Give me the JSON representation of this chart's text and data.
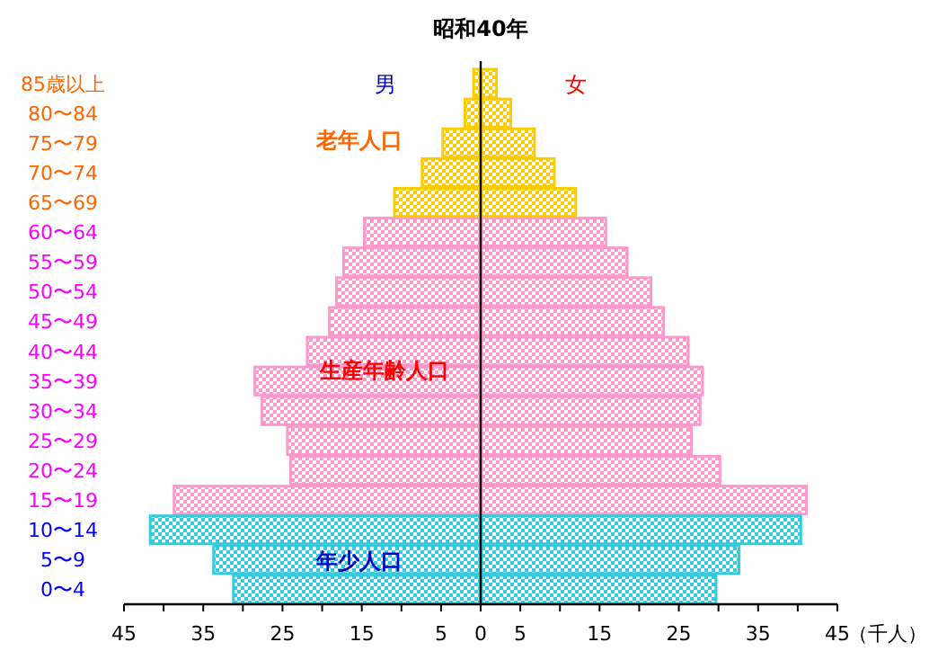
{
  "chart_data": {
    "type": "bar",
    "orientation": "horizontal",
    "title": "昭和40年",
    "xlabel": "（千人）",
    "categories": [
      "85歳以上",
      "80〜84",
      "75〜79",
      "70〜74",
      "65〜69",
      "60〜64",
      "55〜59",
      "50〜54",
      "45〜49",
      "40〜44",
      "35〜39",
      "30〜34",
      "25〜29",
      "20〜24",
      "15〜19",
      "10〜14",
      "5〜9",
      "0〜4"
    ],
    "series": [
      {
        "name": "男",
        "values": [
          -1.0,
          -2.1,
          -4.9,
          -7.5,
          -11.0,
          -14.8,
          -17.4,
          -18.3,
          -19.2,
          -22.0,
          -28.6,
          -27.7,
          -24.5,
          -24.1,
          -38.8,
          -41.8,
          -33.8,
          -31.3
        ],
        "colors": [
          "#ffcc00",
          "#ffcc00",
          "#ffcc00",
          "#ffcc00",
          "#ffcc00",
          "#ff99cc",
          "#ff99cc",
          "#ff99cc",
          "#ff99cc",
          "#ff99cc",
          "#ff99cc",
          "#ff99cc",
          "#ff99cc",
          "#ff99cc",
          "#ff99cc",
          "#33ccdd",
          "#33ccdd",
          "#33ccdd"
        ]
      },
      {
        "name": "女",
        "values": [
          2.1,
          3.9,
          6.9,
          9.4,
          12.1,
          15.9,
          18.6,
          21.6,
          23.2,
          26.3,
          28.1,
          27.8,
          26.7,
          30.3,
          41.2,
          40.5,
          32.7,
          29.8
        ],
        "colors": [
          "#ffcc00",
          "#ffcc00",
          "#ffcc00",
          "#ffcc00",
          "#ffcc00",
          "#ff99cc",
          "#ff99cc",
          "#ff99cc",
          "#ff99cc",
          "#ff99cc",
          "#ff99cc",
          "#ff99cc",
          "#ff99cc",
          "#ff99cc",
          "#ff99cc",
          "#33ccdd",
          "#33ccdd",
          "#33ccdd"
        ]
      }
    ],
    "xlim": [
      -45,
      45
    ],
    "xticks": [
      {
        "value": -45,
        "label": "45"
      },
      {
        "value": -40,
        "label": null
      },
      {
        "value": -35,
        "label": "35"
      },
      {
        "value": -30,
        "label": null
      },
      {
        "value": -25,
        "label": "25"
      },
      {
        "value": -20,
        "label": null
      },
      {
        "value": -15,
        "label": "15"
      },
      {
        "value": -10,
        "label": null
      },
      {
        "value": -5,
        "label": "5"
      },
      0,
      5,
      {
        "value": 10,
        "label": null
      },
      15,
      {
        "value": 20,
        "label": null
      },
      25,
      {
        "value": 30,
        "label": null
      },
      35,
      {
        "value": 40,
        "label": null
      },
      45
    ],
    "annotations": [
      "老年人口",
      "生産年齢人口",
      "年少人口"
    ],
    "stacked": true
  }
}
